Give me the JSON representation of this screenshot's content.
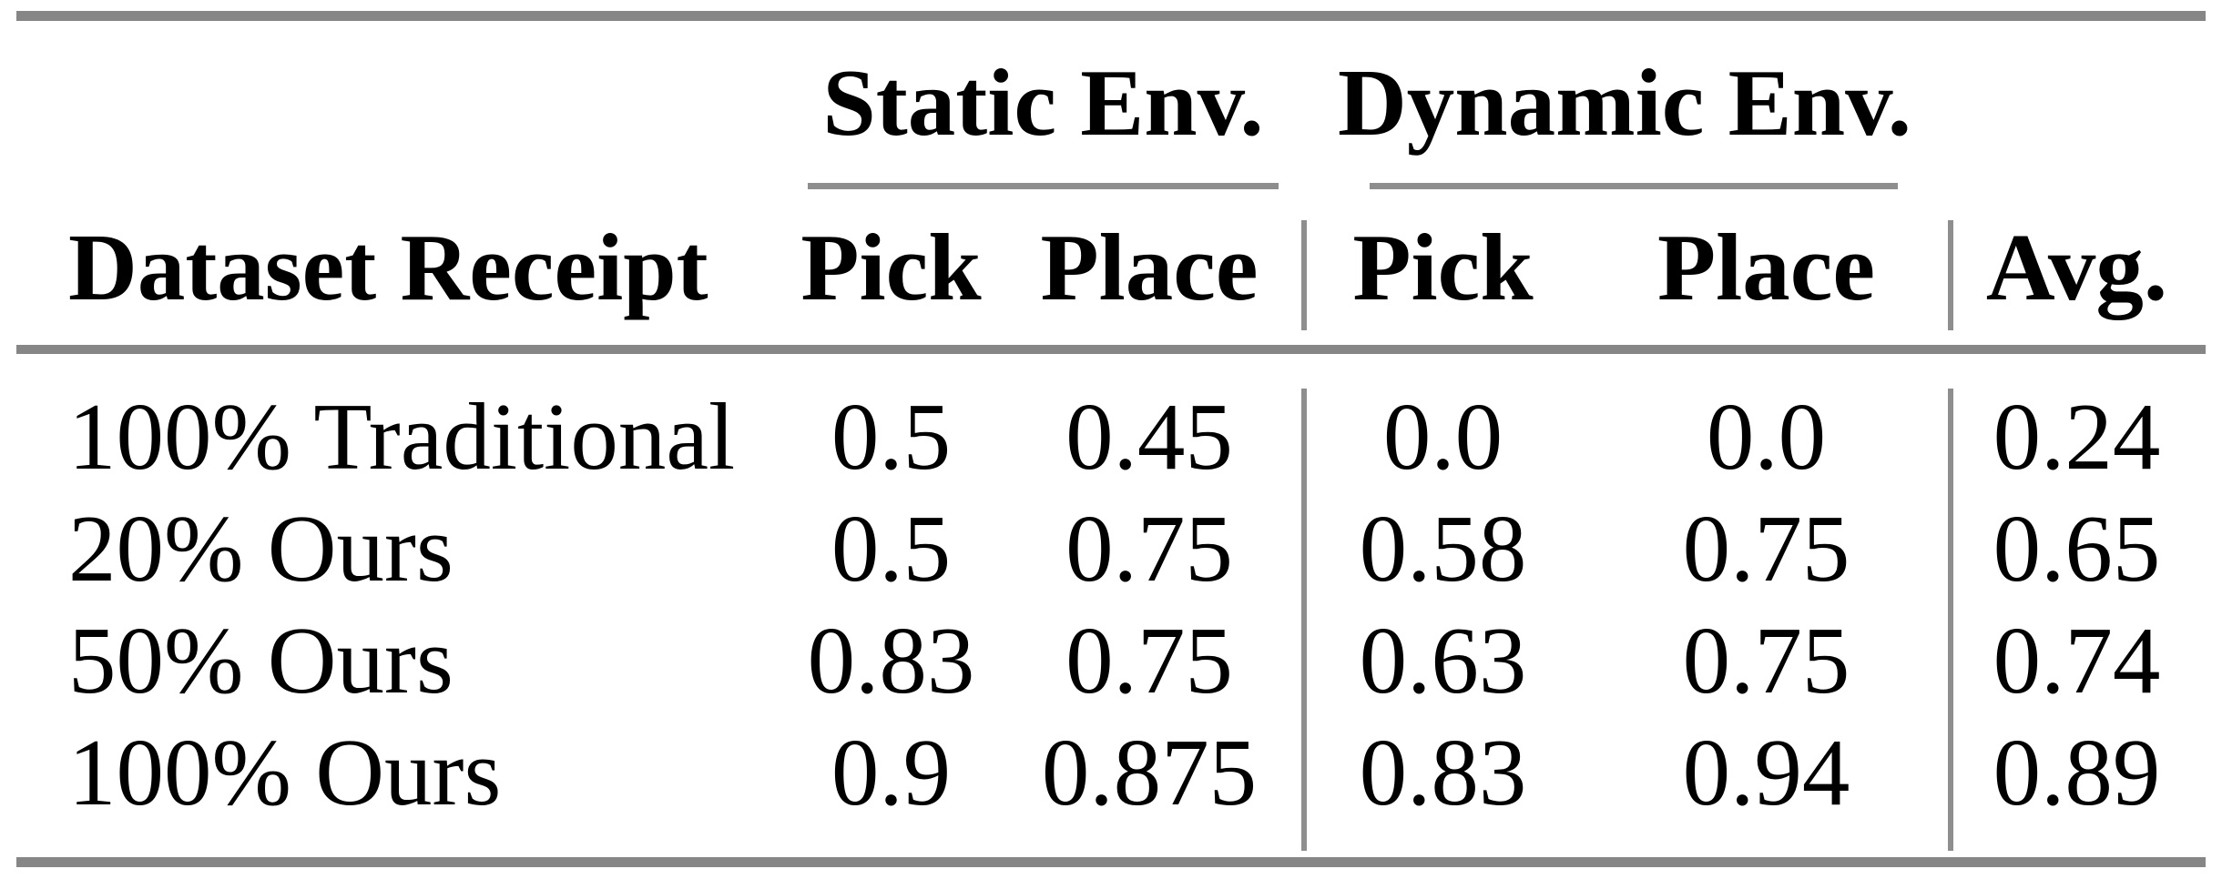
{
  "table": {
    "colors": {
      "rule_gray": "#868686",
      "separator_gray": "#8e8e8e",
      "text": "#000000",
      "background": "#ffffff"
    },
    "group_header": {
      "static": "Static Env.",
      "dynamic": "Dynamic Env."
    },
    "column_header": {
      "row_label": "Dataset Receipt",
      "static_pick": "Pick",
      "static_place": "Place",
      "dynamic_pick": "Pick",
      "dynamic_place": "Place",
      "avg": "Avg."
    },
    "rows": [
      {
        "label": "100% Traditional",
        "static_pick": "0.5",
        "static_place": "0.45",
        "dynamic_pick": "0.0",
        "dynamic_place": "0.0",
        "avg": "0.24"
      },
      {
        "label": "20% Ours",
        "static_pick": "0.5",
        "static_place": "0.75",
        "dynamic_pick": "0.58",
        "dynamic_place": "0.75",
        "avg": "0.65"
      },
      {
        "label": "50% Ours",
        "static_pick": "0.83",
        "static_place": "0.75",
        "dynamic_pick": "0.63",
        "dynamic_place": "0.75",
        "avg": "0.74"
      },
      {
        "label": "100% Ours",
        "static_pick": "0.9",
        "static_place": "0.875",
        "dynamic_pick": "0.83",
        "dynamic_place": "0.94",
        "avg": "0.89"
      }
    ]
  }
}
